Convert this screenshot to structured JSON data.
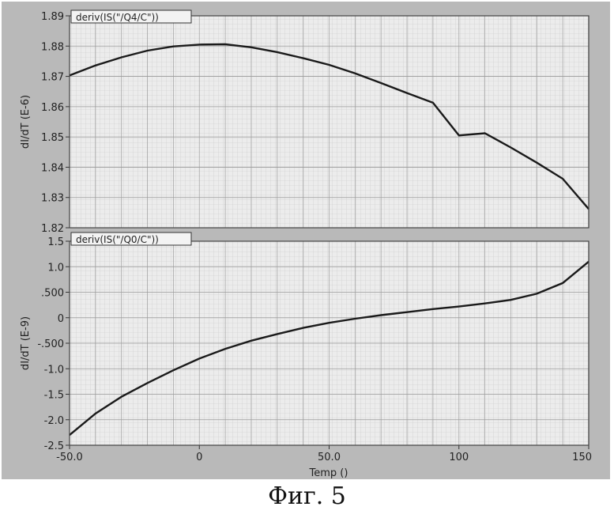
{
  "caption": "Фиг. 5",
  "chart_data": [
    {
      "type": "line",
      "panel_tab": "deriv(IS(\"/Q4/C\"))",
      "ylabel": "dI/dT (E-6)",
      "xlim": [
        -50,
        150
      ],
      "ylim": [
        1.82,
        1.89
      ],
      "yticks": [
        "1.82",
        "1.83",
        "1.84",
        "1.85",
        "1.86",
        "1.87",
        "1.88",
        "1.89"
      ],
      "grid": true,
      "series": [
        {
          "x": [
            -50,
            -40,
            -30,
            -20,
            -10,
            0,
            10,
            20,
            30,
            40,
            50,
            60,
            70,
            80,
            90,
            100,
            110,
            120,
            130,
            140,
            150
          ],
          "y": [
            1.8703,
            1.8736,
            1.8763,
            1.8785,
            1.8799,
            1.8805,
            1.8806,
            1.8796,
            1.878,
            1.876,
            1.8738,
            1.871,
            1.8678,
            1.8645,
            1.8613,
            1.8505,
            1.8512,
            1.8465,
            1.8415,
            1.8362,
            1.8262
          ]
        }
      ]
    },
    {
      "type": "line",
      "panel_tab": "deriv(IS(\"/Q0/C\"))",
      "ylabel": "dI/dT (E-9)",
      "xlabel": "Temp ()",
      "xlim": [
        -50,
        150
      ],
      "ylim": [
        -2.5,
        1.5
      ],
      "xticks": [
        "-50.0",
        "0",
        "50.0",
        "100",
        "150"
      ],
      "yticks": [
        "-2.5",
        "-2.0",
        "-1.5",
        "-1.0",
        "-.500",
        "0",
        ".500",
        "1.0",
        "1.5"
      ],
      "grid": true,
      "series": [
        {
          "x": [
            -50,
            -40,
            -30,
            -20,
            -10,
            0,
            10,
            20,
            30,
            40,
            50,
            60,
            70,
            80,
            90,
            100,
            110,
            120,
            130,
            140,
            150
          ],
          "y": [
            -2.3,
            -1.88,
            -1.55,
            -1.28,
            -1.03,
            -0.8,
            -0.61,
            -0.45,
            -0.32,
            -0.2,
            -0.1,
            -0.02,
            0.05,
            0.11,
            0.17,
            0.22,
            0.28,
            0.35,
            0.47,
            0.68,
            1.1
          ]
        }
      ]
    }
  ]
}
